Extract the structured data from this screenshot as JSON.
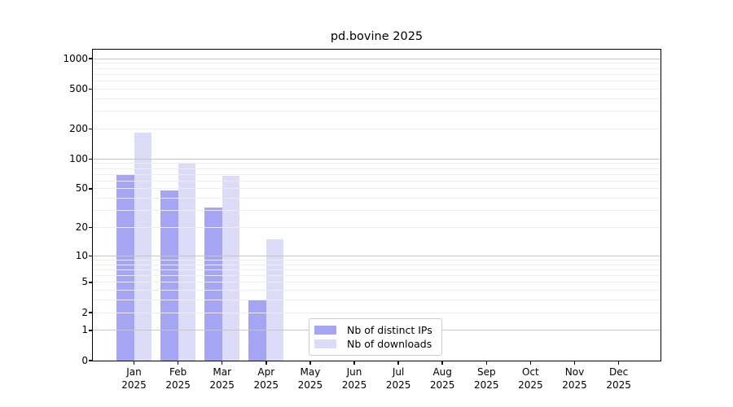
{
  "header": {
    "title": "pd.bovine 2025"
  },
  "chart_data": {
    "type": "bar",
    "title": "pd.bovine 2025",
    "y_scale": "log1p",
    "ylim": [
      0,
      1230
    ],
    "grid": "horizontal",
    "legend_position": "lower center",
    "y_ticks": [
      0,
      1,
      2,
      5,
      10,
      20,
      50,
      100,
      200,
      500,
      1000
    ],
    "categories": [
      "Jan",
      "Feb",
      "Mar",
      "Apr",
      "May",
      "Jun",
      "Jul",
      "Aug",
      "Sep",
      "Oct",
      "Nov",
      "Dec"
    ],
    "category_year": "2025",
    "series": [
      {
        "name": "Nb of distinct IPs",
        "color": "#a5a5f3",
        "values": [
          70,
          48,
          32,
          3,
          null,
          null,
          null,
          null,
          null,
          null,
          null,
          null
        ]
      },
      {
        "name": "Nb of downloads",
        "color": "#dcdcf8",
        "values": [
          183,
          90,
          68,
          15,
          null,
          null,
          null,
          null,
          null,
          null,
          null,
          null
        ]
      }
    ],
    "colors": {
      "decade_gridline": "#c6c6c6",
      "minor_gridline": "#ededed",
      "axis": "#000000",
      "legend_border": "#cccccc"
    }
  }
}
